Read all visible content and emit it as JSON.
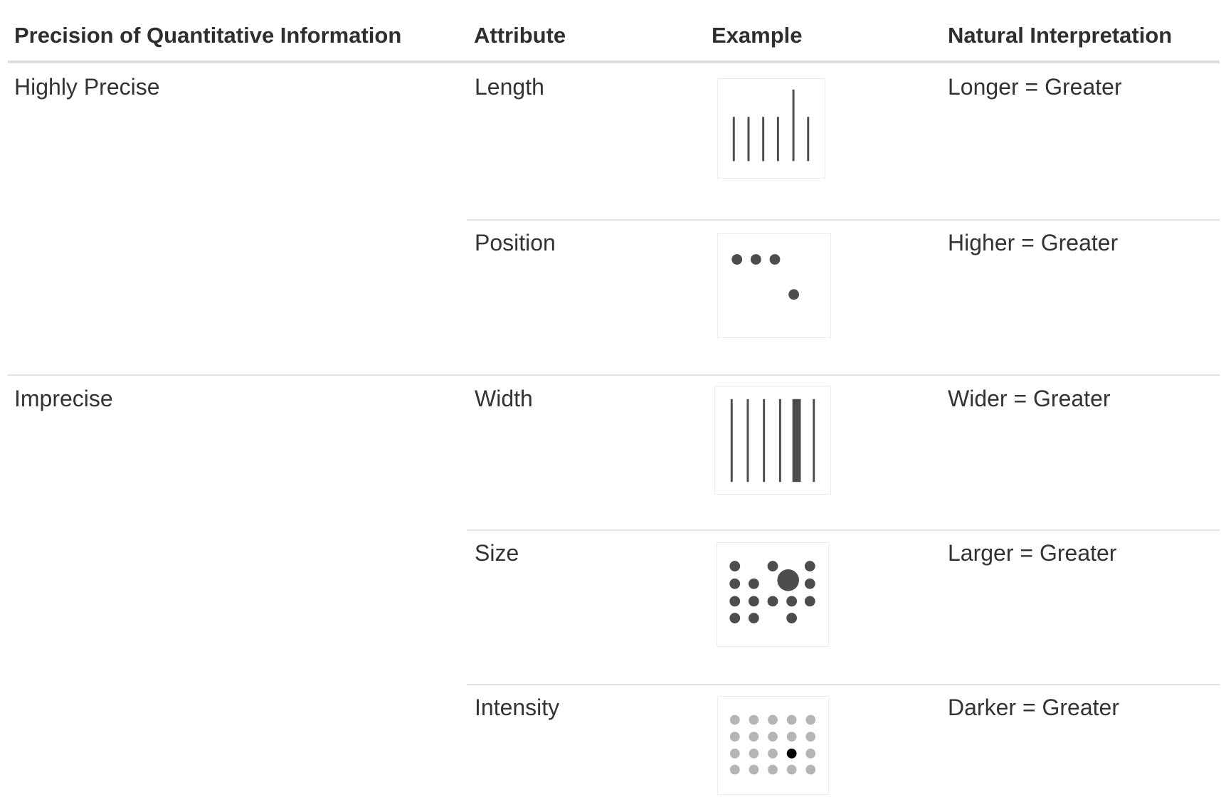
{
  "table": {
    "headers": {
      "precision": "Precision of Quantitative Information",
      "attribute": "Attribute",
      "example": "Example",
      "interpretation": "Natural Interpretation"
    },
    "groups": [
      {
        "label": "Highly Precise"
      },
      {
        "label": "Imprecise"
      }
    ],
    "rows": [
      {
        "attribute": "Length",
        "interpretation": "Longer = Greater",
        "example_icon": "length-example-icon"
      },
      {
        "attribute": "Position",
        "interpretation": "Higher = Greater",
        "example_icon": "position-example-icon"
      },
      {
        "attribute": "Width",
        "interpretation": "Wider = Greater",
        "example_icon": "width-example-icon"
      },
      {
        "attribute": "Size",
        "interpretation": "Larger = Greater",
        "example_icon": "size-example-icon"
      },
      {
        "attribute": "Intensity",
        "interpretation": "Darker = Greater",
        "example_icon": "intensity-example-icon"
      }
    ]
  },
  "colors": {
    "text": "#333333",
    "mark": "#4d4d4d",
    "light_mark": "#b5b5b5",
    "highlight_mark": "#000000",
    "rule": "#e2e2e2"
  }
}
